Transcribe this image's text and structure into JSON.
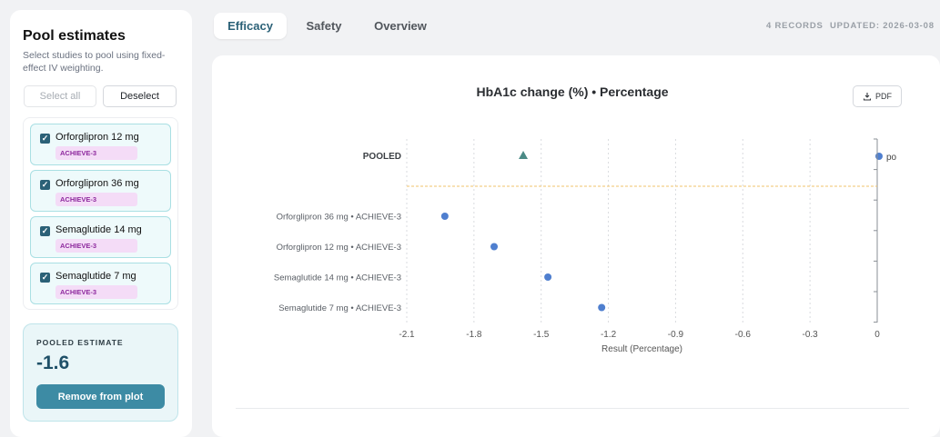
{
  "sidebar": {
    "title": "Pool estimates",
    "description": "Select studies to pool using fixed-effect IV weighting.",
    "select_all_label": "Select all",
    "deselect_label": "Deselect",
    "studies": [
      {
        "name": "Orforglipron 12 mg",
        "tag": "ACHIEVE-3",
        "checked": true
      },
      {
        "name": "Orforglipron 36 mg",
        "tag": "ACHIEVE-3",
        "checked": true
      },
      {
        "name": "Semaglutide 14 mg",
        "tag": "ACHIEVE-3",
        "checked": true
      },
      {
        "name": "Semaglutide 7 mg",
        "tag": "ACHIEVE-3",
        "checked": true
      }
    ],
    "pooled": {
      "label": "POOLED ESTIMATE",
      "value": "-1.6",
      "remove_label": "Remove from plot"
    }
  },
  "tabs": [
    {
      "label": "Efficacy",
      "active": true
    },
    {
      "label": "Safety",
      "active": false
    },
    {
      "label": "Overview",
      "active": false
    }
  ],
  "header": {
    "records": "4 RECORDS",
    "updated": "UPDATED: 2026-03-08"
  },
  "toolbar": {
    "pdf_label": "PDF",
    "pdf_icon": "download-icon"
  },
  "legend_label": "po",
  "colors": {
    "accent": "#2b6177",
    "point": "#4f7fcf",
    "pooled": "#4b8a86",
    "reference_line": "#f2c36b",
    "tag_bg": "#f4dcf7",
    "tag_text": "#8e2a9e"
  },
  "chart_data": {
    "type": "scatter",
    "title": "HbA1c change (%) • Percentage",
    "xlabel": "Result (Percentage)",
    "xlim": [
      -2.1,
      0
    ],
    "x_ticks": [
      "-2.1",
      "-1.8",
      "-1.5",
      "-1.2",
      "-0.9",
      "-0.6",
      "-0.3",
      "0"
    ],
    "pooled": {
      "label": "POOLED",
      "x": -1.58
    },
    "rows": [
      {
        "label": "Orforglipron 36 mg • ACHIEVE-3",
        "x": -1.93
      },
      {
        "label": "Orforglipron 12 mg • ACHIEVE-3",
        "x": -1.71
      },
      {
        "label": "Semaglutide 14 mg • ACHIEVE-3",
        "x": -1.47
      },
      {
        "label": "Semaglutide 7 mg • ACHIEVE-3",
        "x": -1.23
      }
    ]
  }
}
